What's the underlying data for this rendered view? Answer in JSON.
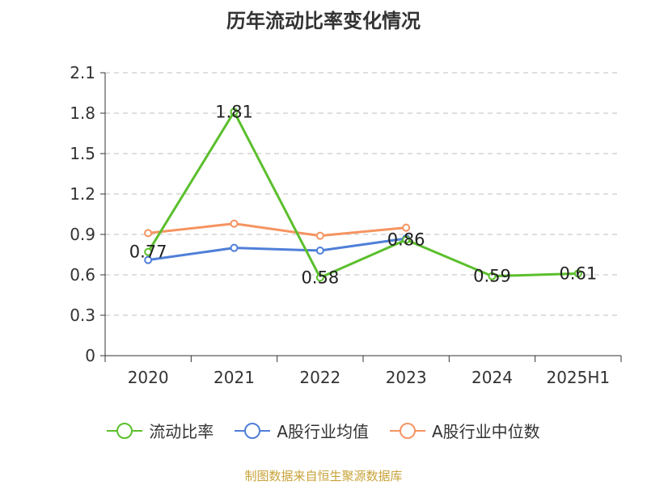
{
  "chart_data": {
    "type": "line",
    "title": "历年流动比率变化情况",
    "categories": [
      "2020",
      "2021",
      "2022",
      "2023",
      "2024",
      "2025H1"
    ],
    "ylim": [
      0,
      2.1
    ],
    "yticks": [
      "0",
      "0.3",
      "0.6",
      "0.9",
      "1.2",
      "1.5",
      "1.8",
      "2.1"
    ],
    "grid": true,
    "legend_position": "bottom",
    "series": [
      {
        "name": "流动比率",
        "color": "#5bbf2c",
        "values": [
          0.77,
          1.81,
          0.58,
          0.86,
          0.59,
          0.61
        ],
        "labels": [
          "0.77",
          "1.81",
          "0.58",
          "0.86",
          "0.59",
          "0.61"
        ]
      },
      {
        "name": "A股行业均值",
        "color": "#4f7fd8",
        "values": [
          0.71,
          0.8,
          0.78,
          0.87,
          null,
          null
        ]
      },
      {
        "name": "A股行业中位数",
        "color": "#f59461",
        "values": [
          0.91,
          0.98,
          0.89,
          0.95,
          null,
          null
        ]
      }
    ]
  },
  "source": "制图数据来自恒生聚源数据库"
}
